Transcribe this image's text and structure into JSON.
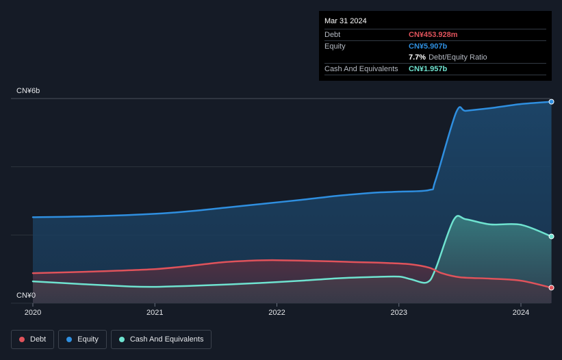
{
  "tooltip": {
    "date": "Mar 31 2024",
    "debt_label": "Debt",
    "debt_value": "CN¥453.928m",
    "equity_label": "Equity",
    "equity_value": "CN¥5.907b",
    "ratio_value": "7.7%",
    "ratio_label": "Debt/Equity Ratio",
    "cash_label": "Cash And Equivalents",
    "cash_value": "CN¥1.957b"
  },
  "legend": {
    "debt": "Debt",
    "equity": "Equity",
    "cash": "Cash And Equivalents"
  },
  "colors": {
    "debt": "#e0535b",
    "equity": "#2f8fe0",
    "cash": "#6fe3d0",
    "background": "#151b26"
  },
  "chart_data": {
    "type": "area",
    "title": "",
    "y_unit": "CN¥b",
    "ylim": [
      0,
      6
    ],
    "y_tick_labels": [
      "CN¥6b",
      "CN¥0"
    ],
    "x_ticks": [
      2020,
      2021,
      2022,
      2023,
      2024
    ],
    "x_range": [
      2019.98,
      2024.25
    ],
    "series": [
      {
        "name": "Equity",
        "x": [
          2020.0,
          2020.5,
          2021.0,
          2021.3,
          2021.6,
          2021.9,
          2022.2,
          2022.5,
          2022.8,
          2023.0,
          2023.25,
          2023.3,
          2023.47,
          2023.55,
          2023.75,
          2024.0,
          2024.25
        ],
        "values": [
          2.52,
          2.55,
          2.62,
          2.7,
          2.81,
          2.92,
          3.03,
          3.15,
          3.24,
          3.27,
          3.32,
          3.6,
          5.6,
          5.64,
          5.72,
          5.84,
          5.907
        ]
      },
      {
        "name": "Debt",
        "x": [
          2020.0,
          2020.5,
          2021.0,
          2021.3,
          2021.55,
          2021.8,
          2022.0,
          2022.3,
          2022.6,
          2022.9,
          2023.1,
          2023.25,
          2023.35,
          2023.5,
          2023.75,
          2024.0,
          2024.25
        ],
        "values": [
          0.88,
          0.93,
          1.0,
          1.1,
          1.2,
          1.25,
          1.26,
          1.24,
          1.21,
          1.18,
          1.14,
          1.04,
          0.88,
          0.76,
          0.72,
          0.66,
          0.454
        ]
      },
      {
        "name": "Cash And Equivalents",
        "x": [
          2020.0,
          2020.4,
          2020.8,
          2021.0,
          2021.3,
          2021.6,
          2021.9,
          2022.2,
          2022.5,
          2022.8,
          2023.0,
          2023.1,
          2023.23,
          2023.3,
          2023.45,
          2023.55,
          2023.75,
          2024.0,
          2024.25
        ],
        "values": [
          0.64,
          0.56,
          0.49,
          0.48,
          0.51,
          0.55,
          0.6,
          0.66,
          0.73,
          0.77,
          0.78,
          0.7,
          0.61,
          1.0,
          2.45,
          2.46,
          2.31,
          2.3,
          1.957
        ]
      }
    ]
  }
}
